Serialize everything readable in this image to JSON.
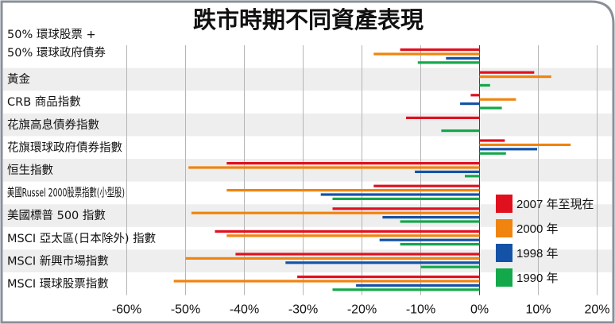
{
  "chart_data": {
    "type": "bar",
    "orientation": "horizontal",
    "title": "跌市時期不同資產表現",
    "categories": [
      [
        "50% 環球股票 +",
        "50% 環球政府債券"
      ],
      [
        "黃金"
      ],
      [
        "CRB 商品指數"
      ],
      [
        "花旗高息債券指數"
      ],
      [
        "花旗環球政府債券指數"
      ],
      [
        "恒生指數"
      ],
      [
        "美國Russel 2000股票指數(小型股)"
      ],
      [
        "美國標普 500 指數"
      ],
      [
        "MSCI 亞太區(日本除外) 指數"
      ],
      [
        "MSCI 新興市場指數"
      ],
      [
        "MSCI 環球股票指數"
      ]
    ],
    "series": [
      {
        "name": "2007 年至現在",
        "color": "#e0101f",
        "values": [
          -13.5,
          9.3,
          -1.5,
          -12.5,
          4.3,
          -43,
          -18,
          -25,
          -45,
          -41.5,
          -31
        ]
      },
      {
        "name": "2000 年",
        "color": "#f0840e",
        "values": [
          -18,
          12.2,
          6.2,
          null,
          15.5,
          -49.5,
          -43,
          -49,
          -43,
          -50,
          -52
        ]
      },
      {
        "name": "1998 年",
        "color": "#1452a8",
        "values": [
          -5.7,
          null,
          -3.3,
          null,
          9.8,
          -11,
          -27,
          -16.5,
          -17,
          -33,
          -21
        ]
      },
      {
        "name": "1990 年",
        "color": "#13a84a",
        "values": [
          -10.5,
          1.8,
          3.8,
          -6.5,
          4.5,
          -2.5,
          -25,
          -13.5,
          -13.5,
          -10,
          -25
        ]
      }
    ],
    "xlim": [
      -60,
      20
    ],
    "xticks": [
      -60,
      -50,
      -40,
      -30,
      -20,
      -10,
      0,
      10,
      20
    ],
    "xtick_labels": [
      "-60%",
      "-50%",
      "-40%",
      "-30%",
      "-20%",
      "-10%",
      "0%",
      "10%",
      "20%"
    ],
    "xlabel": "",
    "ylabel": "",
    "grid": "vertical",
    "legend_position": "right"
  }
}
